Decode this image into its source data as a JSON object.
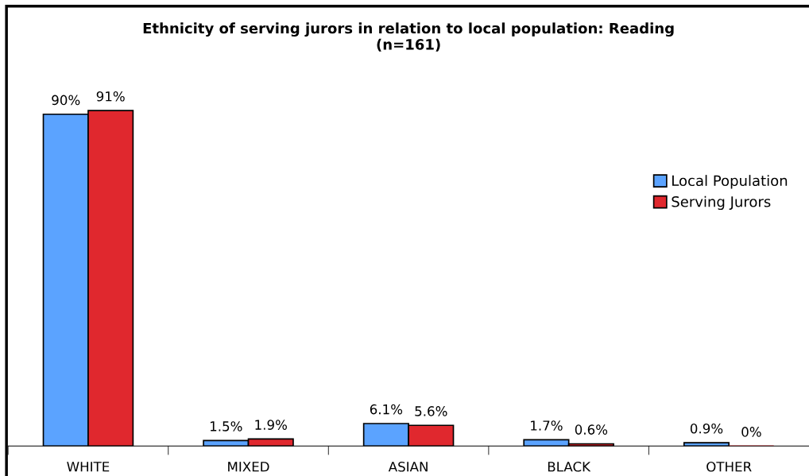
{
  "chart_data": {
    "type": "bar",
    "title": "Ethnicity of serving jurors in relation to local population: Reading\n(n=161)",
    "categories": [
      "WHITE",
      "MIXED",
      "ASIAN",
      "BLACK",
      "OTHER"
    ],
    "series": [
      {
        "name": "Local Population",
        "color": "#5ba3ff",
        "values": [
          90,
          1.5,
          6.1,
          1.7,
          0.9
        ],
        "value_labels": [
          "90%",
          "1.5%",
          "6.1%",
          "1.7%",
          "0.9%"
        ]
      },
      {
        "name": "Serving Jurors",
        "color": "#e0282e",
        "values": [
          91,
          1.9,
          5.6,
          0.6,
          0
        ],
        "value_labels": [
          "91%",
          "1.9%",
          "5.6%",
          "0.6%",
          "0%"
        ]
      }
    ],
    "legend": "right",
    "grid": false
  }
}
